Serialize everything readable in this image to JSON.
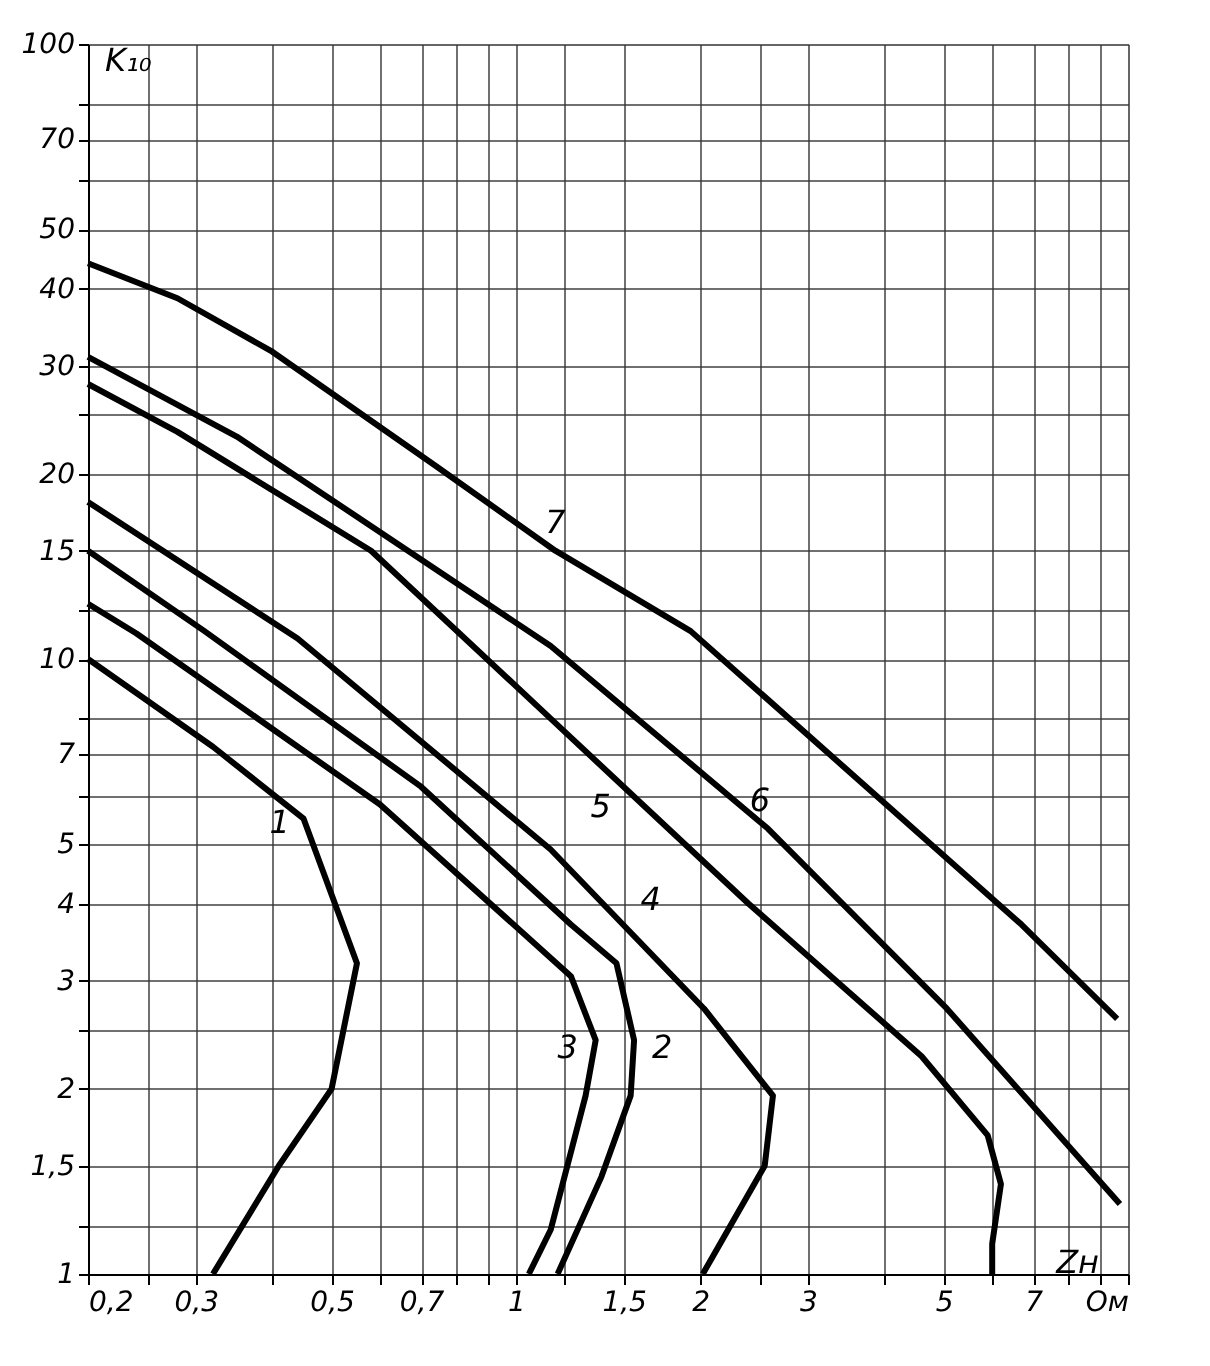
{
  "chart_data": {
    "type": "line",
    "xlabel": "Zн",
    "ylabel": "K₁₀",
    "log": "xy",
    "grid": true,
    "legend": false,
    "marker": "none",
    "line_style": "solid",
    "xlim": [
      0.2,
      10
    ],
    "ylim": [
      1,
      100
    ],
    "xticks": [
      {
        "value": 0.2,
        "label": "0,2"
      },
      {
        "value": 0.25,
        "label": null
      },
      {
        "value": 0.3,
        "label": "0,3"
      },
      {
        "value": 0.4,
        "label": null
      },
      {
        "value": 0.5,
        "label": "0,5"
      },
      {
        "value": 0.6,
        "label": null
      },
      {
        "value": 0.7,
        "label": "0,7"
      },
      {
        "value": 0.8,
        "label": null
      },
      {
        "value": 0.9,
        "label": null
      },
      1,
      {
        "value": 1.2,
        "label": null
      },
      {
        "value": 1.5,
        "label": "1,5"
      },
      2,
      {
        "value": 2.5,
        "label": null
      },
      3,
      {
        "value": 4,
        "label": null
      },
      5,
      {
        "value": 6,
        "label": null
      },
      7,
      {
        "value": 8,
        "label": null
      },
      {
        "value": 9,
        "label": null
      },
      {
        "value": 10,
        "label": "Ом"
      }
    ],
    "yticks": [
      1,
      {
        "value": 1.2,
        "label": null
      },
      {
        "value": 1.5,
        "label": "1,5"
      },
      2,
      {
        "value": 2.5,
        "label": null
      },
      3,
      4,
      5,
      {
        "value": 6,
        "label": null
      },
      7,
      {
        "value": 8,
        "label": null
      },
      10,
      {
        "value": 12,
        "label": null
      },
      15,
      20,
      {
        "value": 25,
        "label": null
      },
      30,
      40,
      50,
      {
        "value": 60,
        "label": null
      },
      70,
      {
        "value": 80,
        "label": null
      },
      100
    ],
    "series": [
      {
        "name": "1",
        "color": "#000000",
        "x": [
          0.2,
          0.32,
          0.45,
          0.55,
          0.5,
          0.41,
          0.32
        ],
        "values": [
          10,
          7.2,
          5.5,
          3.2,
          2.0,
          1.5,
          1
        ]
      },
      {
        "name": "2",
        "color": "#000000",
        "x": [
          0.2,
          0.31,
          0.7,
          1.23,
          1.46,
          1.56,
          1.54,
          1.38,
          1.17
        ],
        "values": [
          15,
          11.1,
          6.2,
          3.7,
          3.2,
          2.4,
          1.95,
          1.44,
          1
        ]
      },
      {
        "name": "3",
        "color": "#000000",
        "x": [
          0.2,
          0.24,
          0.6,
          1.23,
          1.35,
          1.3,
          1.14,
          1.05
        ],
        "values": [
          12.3,
          11,
          5.8,
          3.05,
          2.4,
          1.95,
          1.18,
          1
        ]
      },
      {
        "name": "4",
        "color": "#000000",
        "x": [
          0.2,
          0.44,
          1.14,
          2.03,
          2.63,
          2.55,
          2.1,
          2.02
        ],
        "values": [
          18,
          10.8,
          4.9,
          2.7,
          1.95,
          1.5,
          1.07,
          1
        ]
      },
      {
        "name": "5",
        "color": "#000000",
        "x": [
          0.2,
          0.28,
          0.58,
          1.14,
          2.4,
          4.6,
          5.9,
          6.2,
          6.0,
          6.0
        ],
        "values": [
          28,
          23.4,
          15,
          8.0,
          4.0,
          2.26,
          1.68,
          1.4,
          1.12,
          1
        ]
      },
      {
        "name": "6",
        "color": "#000000",
        "x": [
          0.2,
          0.35,
          1.14,
          2.58,
          5.06,
          9.7
        ],
        "values": [
          31,
          23,
          10.5,
          5.3,
          2.7,
          1.3
        ]
      },
      {
        "name": "7",
        "color": "#000000",
        "x": [
          0.2,
          0.28,
          0.4,
          0.74,
          1.16,
          1.93,
          3.42,
          6.7,
          9.6
        ],
        "values": [
          44,
          38.6,
          31.6,
          20.6,
          15,
          11.1,
          6.7,
          3.7,
          2.6
        ]
      }
    ]
  }
}
